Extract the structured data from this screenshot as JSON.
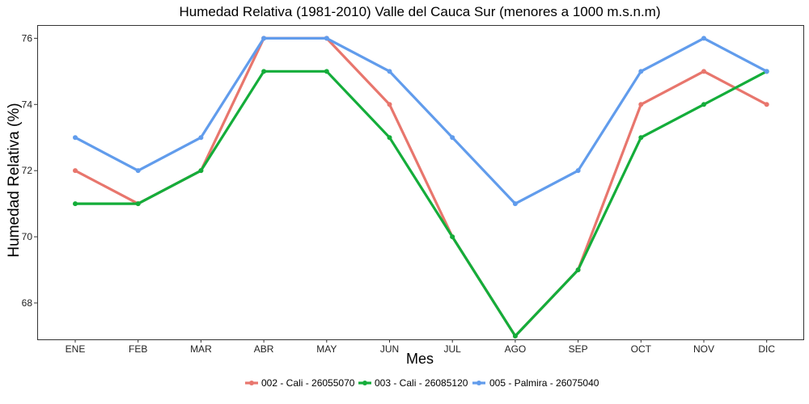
{
  "chart_data": {
    "type": "line",
    "title": "Humedad Relativa (1981-2010) Valle del Cauca Sur (menores a 1000 m.s.n.m)",
    "xlabel": "Mes",
    "ylabel": "Humedad Relativa (%)",
    "categories": [
      "ENE",
      "FEB",
      "MAR",
      "ABR",
      "MAY",
      "JUN",
      "JUL",
      "AGO",
      "SEP",
      "OCT",
      "NOV",
      "DIC"
    ],
    "ylim": [
      66.9,
      76.4
    ],
    "yticks": [
      68,
      70,
      72,
      74,
      76
    ],
    "grid": false,
    "legend_position": "bottom",
    "series": [
      {
        "name": "002 - Cali - 26055070",
        "color": "#e8766d",
        "values": [
          72,
          71,
          72,
          76,
          76,
          74,
          70,
          67,
          69,
          74,
          75,
          74
        ]
      },
      {
        "name": "003 - Cali - 26085120",
        "color": "#14ad3a",
        "values": [
          71,
          71,
          72,
          75,
          75,
          73,
          70,
          67,
          69,
          73,
          74,
          75
        ]
      },
      {
        "name": "005 - Palmira - 26075040",
        "color": "#619cec",
        "values": [
          73,
          72,
          73,
          76,
          76,
          75,
          73,
          71,
          72,
          75,
          76,
          75
        ]
      }
    ]
  }
}
